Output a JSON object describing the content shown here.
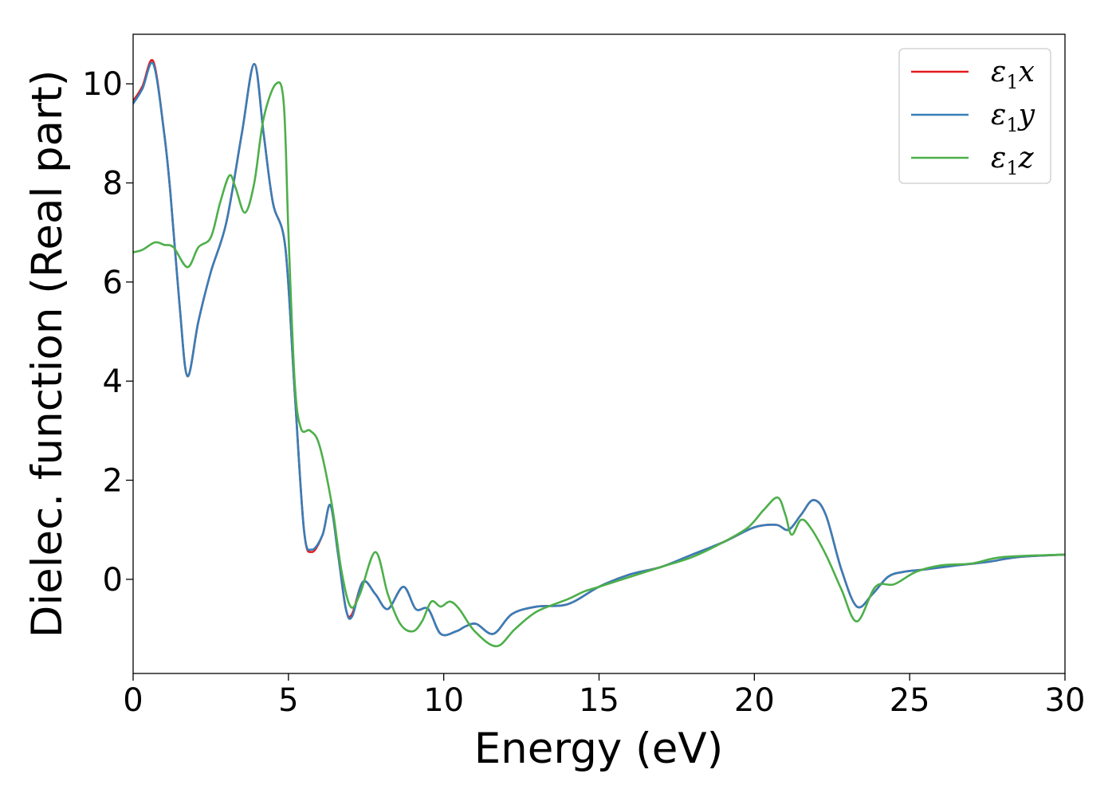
{
  "chart_data": {
    "type": "line",
    "title": "",
    "xlabel": "Energy (eV)",
    "ylabel": "Dielec. function (Real part)",
    "xlim": [
      0,
      30
    ],
    "ylim": [
      -1.9,
      11
    ],
    "xticks": [
      0,
      5,
      10,
      15,
      20,
      25,
      30
    ],
    "yticks": [
      0,
      2,
      4,
      6,
      8,
      10
    ],
    "grid": false,
    "legend_position": "top-right",
    "series": [
      {
        "name": "ε1x",
        "legend": {
          "base": "ε",
          "sub": "1",
          "tail": "x"
        },
        "color": "#e41a1c",
        "x": [
          0,
          0.3,
          0.65,
          1.0,
          1.2,
          1.5,
          1.75,
          2.1,
          2.5,
          3.0,
          3.5,
          3.9,
          4.2,
          4.5,
          4.9,
          5.2,
          5.5,
          5.75,
          6.1,
          6.35,
          6.6,
          6.85,
          7.05,
          7.4,
          7.8,
          8.2,
          8.7,
          9.1,
          9.5,
          9.9,
          10.4,
          10.7,
          11.05,
          11.6,
          12.2,
          13.0,
          14.0,
          15.0,
          16.0,
          17.0,
          18.0,
          19.0,
          20.0,
          20.7,
          21.1,
          21.5,
          21.9,
          22.3,
          22.8,
          23.3,
          23.8,
          24.3,
          24.8,
          25.5,
          26.5,
          27.5,
          28.5,
          30.0
        ],
        "y": [
          9.65,
          9.95,
          10.45,
          9.0,
          7.8,
          5.5,
          4.1,
          5.2,
          6.2,
          7.2,
          9.0,
          10.4,
          9.0,
          7.6,
          6.7,
          3.8,
          1.0,
          0.55,
          0.9,
          1.5,
          0.5,
          -0.6,
          -0.7,
          -0.05,
          -0.3,
          -0.6,
          -0.15,
          -0.6,
          -0.6,
          -1.1,
          -1.05,
          -0.95,
          -0.9,
          -1.1,
          -0.7,
          -0.55,
          -0.5,
          -0.15,
          0.1,
          0.25,
          0.5,
          0.75,
          1.05,
          1.1,
          1.0,
          1.3,
          1.6,
          1.3,
          0.2,
          -0.55,
          -0.3,
          0.05,
          0.15,
          0.2,
          0.28,
          0.35,
          0.45,
          0.5
        ]
      },
      {
        "name": "ε1y",
        "legend": {
          "base": "ε",
          "sub": "1",
          "tail": "y"
        },
        "color": "#377eb8",
        "x": [
          0,
          0.3,
          0.65,
          1.0,
          1.2,
          1.5,
          1.75,
          2.1,
          2.5,
          3.0,
          3.5,
          3.9,
          4.2,
          4.5,
          4.9,
          5.2,
          5.5,
          5.75,
          6.1,
          6.35,
          6.6,
          6.85,
          7.05,
          7.4,
          7.8,
          8.2,
          8.7,
          9.1,
          9.5,
          9.9,
          10.4,
          10.7,
          11.05,
          11.6,
          12.2,
          13.0,
          14.0,
          15.0,
          16.0,
          17.0,
          18.0,
          19.0,
          20.0,
          20.7,
          21.1,
          21.5,
          21.9,
          22.3,
          22.8,
          23.3,
          23.8,
          24.3,
          24.8,
          25.5,
          26.5,
          27.5,
          28.5,
          30.0
        ],
        "y": [
          9.6,
          9.9,
          10.4,
          9.0,
          7.8,
          5.5,
          4.1,
          5.2,
          6.2,
          7.2,
          9.0,
          10.4,
          9.0,
          7.6,
          6.7,
          3.8,
          1.0,
          0.6,
          0.9,
          1.5,
          0.5,
          -0.6,
          -0.75,
          -0.05,
          -0.3,
          -0.6,
          -0.15,
          -0.6,
          -0.6,
          -1.1,
          -1.05,
          -0.95,
          -0.9,
          -1.1,
          -0.7,
          -0.55,
          -0.5,
          -0.15,
          0.1,
          0.25,
          0.5,
          0.75,
          1.05,
          1.1,
          1.0,
          1.3,
          1.6,
          1.3,
          0.2,
          -0.55,
          -0.3,
          0.05,
          0.15,
          0.2,
          0.28,
          0.35,
          0.45,
          0.5
        ]
      },
      {
        "name": "ε1z",
        "legend": {
          "base": "ε",
          "sub": "1",
          "tail": "z"
        },
        "color": "#4daf4a",
        "x": [
          0,
          0.3,
          0.7,
          1.0,
          1.3,
          1.75,
          2.1,
          2.5,
          2.8,
          3.1,
          3.3,
          3.6,
          3.9,
          4.2,
          4.6,
          4.85,
          5.0,
          5.2,
          5.4,
          5.7,
          6.0,
          6.4,
          6.7,
          7.0,
          7.3,
          7.8,
          8.2,
          8.6,
          9.0,
          9.3,
          9.6,
          9.9,
          10.2,
          10.5,
          11.0,
          11.7,
          12.3,
          13.0,
          14.0,
          14.5,
          15.0,
          16.0,
          17.0,
          18.0,
          19.0,
          19.8,
          20.3,
          20.75,
          21.0,
          21.2,
          21.5,
          21.8,
          22.3,
          22.8,
          23.3,
          23.9,
          24.5,
          25.2,
          26.0,
          27.0,
          28.0,
          30.0
        ],
        "y": [
          6.6,
          6.65,
          6.8,
          6.75,
          6.7,
          6.3,
          6.7,
          6.9,
          7.6,
          8.15,
          7.9,
          7.4,
          8.0,
          9.3,
          10.0,
          9.6,
          7.0,
          4.0,
          3.05,
          3.0,
          2.7,
          1.5,
          0.2,
          -0.55,
          -0.3,
          0.55,
          -0.3,
          -0.9,
          -1.05,
          -0.85,
          -0.45,
          -0.55,
          -0.45,
          -0.6,
          -1.05,
          -1.35,
          -1.0,
          -0.65,
          -0.4,
          -0.25,
          -0.15,
          0.05,
          0.25,
          0.45,
          0.75,
          1.05,
          1.4,
          1.65,
          1.3,
          0.9,
          1.2,
          1.05,
          0.5,
          -0.2,
          -0.85,
          -0.15,
          -0.1,
          0.15,
          0.28,
          0.32,
          0.45,
          0.5
        ]
      }
    ]
  }
}
